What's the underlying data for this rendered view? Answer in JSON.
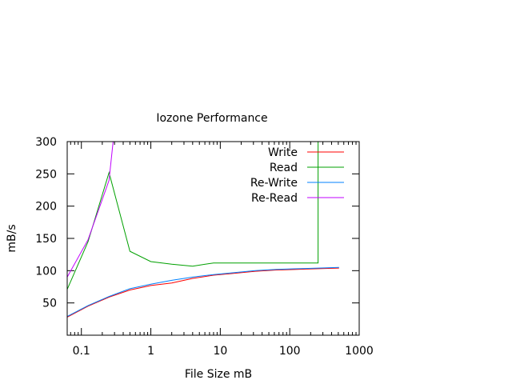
{
  "chart_data": {
    "type": "line",
    "title": "Iozone Performance",
    "xlabel": "File Size mB",
    "ylabel": "mB/s",
    "xscale": "log",
    "xlim": [
      0.0625,
      1000
    ],
    "ylim": [
      0,
      300
    ],
    "xticks": [
      {
        "value": 0.1,
        "label": "0.1"
      },
      {
        "value": 1,
        "label": "1"
      },
      {
        "value": 10,
        "label": "10"
      },
      {
        "value": 100,
        "label": "100"
      },
      {
        "value": 1000,
        "label": "1000"
      }
    ],
    "yticks": [
      {
        "value": 50,
        "label": "50"
      },
      {
        "value": 100,
        "label": "100"
      },
      {
        "value": 150,
        "label": "150"
      },
      {
        "value": 200,
        "label": "200"
      },
      {
        "value": 250,
        "label": "250"
      },
      {
        "value": 300,
        "label": "300"
      }
    ],
    "grid": false,
    "legend": "top-right",
    "series": [
      {
        "name": "Write",
        "color": "#ff0000",
        "x": [
          0.0625,
          0.125,
          0.25,
          0.5,
          1,
          2,
          4,
          8,
          16,
          32,
          64,
          128,
          256,
          512
        ],
        "y": [
          28,
          45,
          59,
          70,
          77,
          81,
          88,
          93,
          96,
          99,
          101,
          102,
          103,
          104
        ]
      },
      {
        "name": "Read",
        "color": "#00a000",
        "x": [
          0.0625,
          0.125,
          0.25,
          0.5,
          1,
          2,
          4,
          8,
          16,
          32,
          64,
          128,
          256,
          256,
          270
        ],
        "y": [
          71,
          145,
          252,
          130,
          114,
          110,
          107,
          112,
          112,
          112,
          112,
          112,
          112,
          300,
          320
        ]
      },
      {
        "name": "Re-Write",
        "color": "#0080ff",
        "x": [
          0.0625,
          0.125,
          0.25,
          0.5,
          1,
          2,
          4,
          8,
          16,
          32,
          64,
          128,
          256,
          512
        ],
        "y": [
          29,
          46,
          60,
          72,
          79,
          85,
          90,
          94,
          97,
          100,
          102,
          103,
          104,
          105
        ]
      },
      {
        "name": "Re-Read",
        "color": "#c000ff",
        "x": [
          0.0625,
          0.125,
          0.25,
          0.3
        ],
        "y": [
          90,
          148,
          240,
          320
        ]
      }
    ]
  }
}
